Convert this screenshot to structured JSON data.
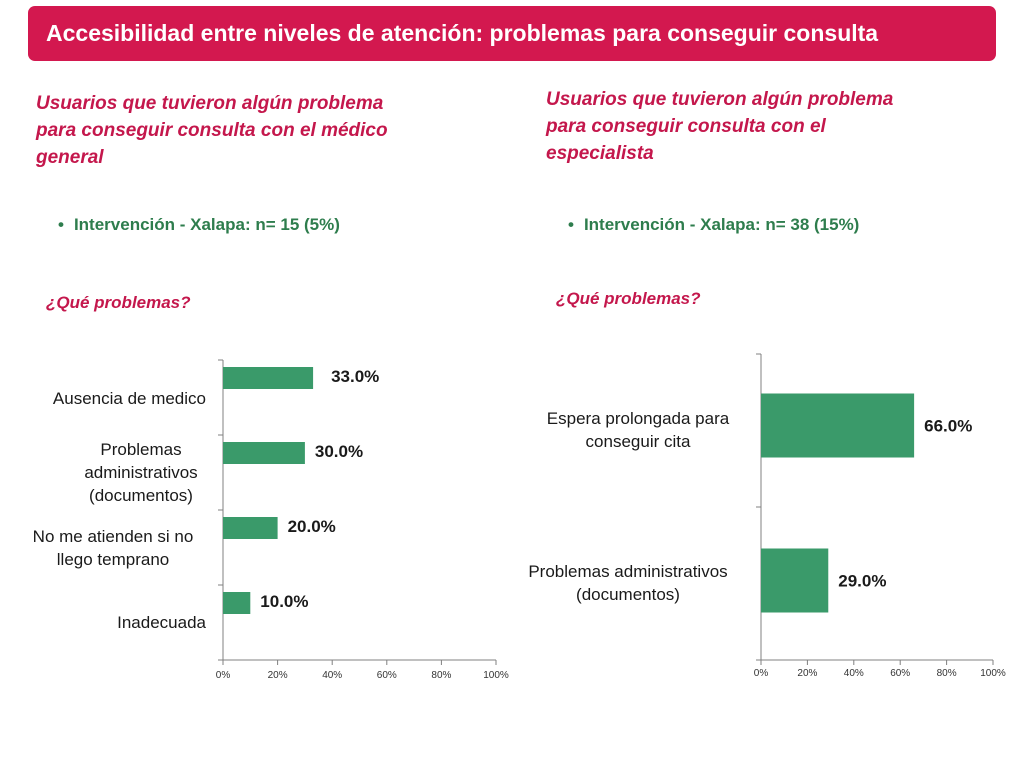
{
  "header": {
    "title": "Accesibilidad entre niveles de atención: problemas para conseguir consulta"
  },
  "panels": [
    {
      "title": "Usuarios que tuvieron algún problema para conseguir consulta con el médico general",
      "title_lines": [
        "Usuarios que tuvieron algún problema",
        "para conseguir consulta con el médico",
        "general"
      ],
      "bullet": "Intervención - Xalapa:  n= 15 (5%)",
      "question": "¿Qué problemas?"
    },
    {
      "title": "Usuarios que tuvieron algún problema para conseguir consulta con el especialista",
      "title_lines": [
        "Usuarios que tuvieron algún problema",
        "para conseguir consulta con el",
        "especialista"
      ],
      "bullet": "Intervención - Xalapa:  n= 38 (15%)",
      "question": "¿Qué problemas?"
    }
  ],
  "colors": {
    "banner": "#d3184f",
    "title_text": "#c4174c",
    "bullet_text": "#2e7d4d",
    "bar": "#3a9a6a"
  },
  "chart_data": [
    {
      "type": "bar",
      "orientation": "horizontal",
      "categories": [
        "Ausencia de medico",
        "Problemas administrativos (documentos)",
        "No me atienden si no llego temprano",
        "Inadecuada"
      ],
      "category_lines": [
        [
          "Ausencia de medico"
        ],
        [
          "Problemas",
          "administrativos",
          "(documentos)"
        ],
        [
          "No me atienden si no",
          "llego temprano"
        ],
        [
          "Inadecuada"
        ]
      ],
      "values": [
        33.0,
        30.0,
        20.0,
        10.0
      ],
      "value_labels": [
        "33.0%",
        "30.0%",
        "20.0%",
        "10.0%"
      ],
      "xlim": [
        0,
        100
      ],
      "xticks": [
        "0%",
        "20%",
        "40%",
        "60%",
        "80%",
        "100%"
      ]
    },
    {
      "type": "bar",
      "orientation": "horizontal",
      "categories": [
        "Espera prolongada para conseguir cita",
        "Problemas administrativos (documentos)"
      ],
      "category_lines": [
        [
          "Espera prolongada para",
          "conseguir cita"
        ],
        [
          "Problemas administrativos",
          "(documentos)"
        ]
      ],
      "values": [
        66.0,
        29.0
      ],
      "value_labels": [
        "66.0%",
        "29.0%"
      ],
      "xlim": [
        0,
        100
      ],
      "xticks": [
        "0%",
        "20%",
        "40%",
        "60%",
        "80%",
        "100%"
      ]
    }
  ]
}
